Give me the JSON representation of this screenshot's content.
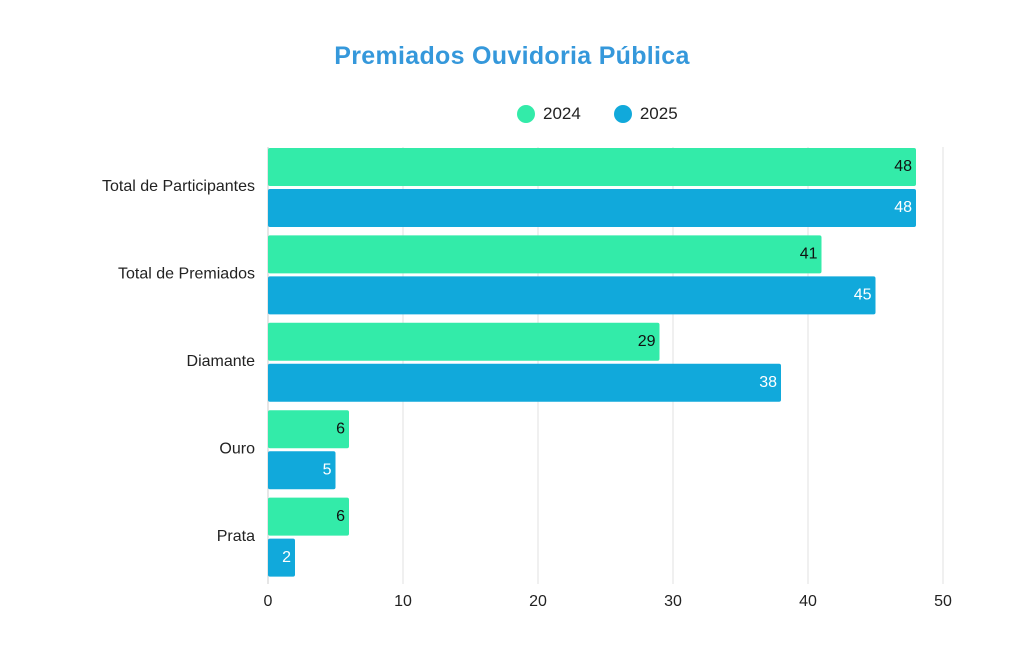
{
  "chart_data": {
    "type": "bar",
    "orientation": "horizontal",
    "title": "Premiados Ouvidoria Pública",
    "xlabel": "",
    "ylabel": "",
    "categories": [
      "Total de Participantes",
      "Total de Premiados",
      "Diamante",
      "Ouro",
      "Prata"
    ],
    "series": [
      {
        "name": "2024",
        "color": "#33EBA9",
        "label_color": "#111111",
        "values": [
          48,
          41,
          29,
          6,
          6
        ]
      },
      {
        "name": "2025",
        "color": "#11A9DB",
        "label_color": "#FFFFFF",
        "values": [
          48,
          45,
          38,
          5,
          2
        ]
      }
    ],
    "xlim": [
      0,
      50
    ],
    "xticks": [
      0,
      10,
      20,
      30,
      40,
      50
    ],
    "grid": true,
    "legend_position": "top-center",
    "data_labels": true
  }
}
